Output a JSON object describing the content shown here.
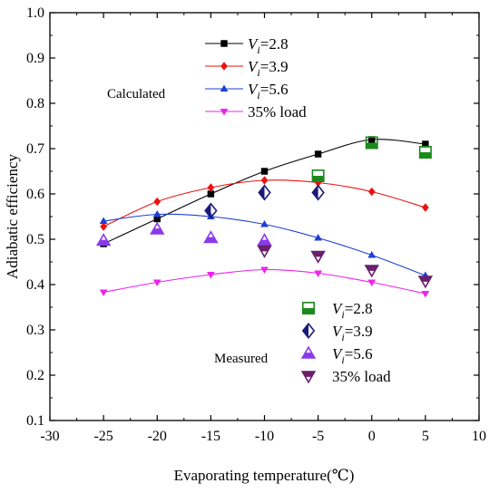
{
  "chart_data": {
    "type": "line",
    "xlabel": "Evaporating temperature(℃)",
    "ylabel": "Adiabatic efficiency",
    "xlim": [
      -30,
      10
    ],
    "ylim": [
      0.1,
      1.0
    ],
    "xticks": [
      "-30",
      "-25",
      "-20",
      "-15",
      "-10",
      "-5",
      "0",
      "5",
      "10"
    ],
    "yticks": [
      "0.1",
      "0.2",
      "0.3",
      "0.4",
      "0.5",
      "0.6",
      "0.7",
      "0.8",
      "0.9",
      "1.0"
    ],
    "grid": false,
    "annotations": {
      "calculated": "Calculated",
      "measured": "Measured"
    },
    "calculated_series": [
      {
        "name_main": "V",
        "name_sub": "i",
        "name_rest": "=2.8",
        "color": "#000000",
        "marker": "square",
        "x": [
          -25,
          -20,
          -15,
          -10,
          -5,
          0,
          5
        ],
        "y": [
          0.49,
          0.545,
          0.6,
          0.65,
          0.688,
          0.72,
          0.71
        ]
      },
      {
        "name_main": "V",
        "name_sub": "i",
        "name_rest": "=3.9",
        "color": "#ee1111",
        "marker": "diamond",
        "x": [
          -25,
          -20,
          -15,
          -10,
          -5,
          0,
          5
        ],
        "y": [
          0.528,
          0.583,
          0.614,
          0.63,
          0.625,
          0.605,
          0.57
        ]
      },
      {
        "name_main": "V",
        "name_sub": "i",
        "name_rest": "=5.6",
        "color": "#1f3fd6",
        "marker": "triangle-up",
        "x": [
          -25,
          -20,
          -15,
          -10,
          -5,
          0,
          5
        ],
        "y": [
          0.54,
          0.555,
          0.55,
          0.533,
          0.503,
          0.465,
          0.42
        ]
      },
      {
        "name_main": "35% load",
        "name_sub": "",
        "name_rest": "",
        "color": "#ee22ee",
        "marker": "triangle-down",
        "x": [
          -25,
          -20,
          -15,
          -10,
          -5,
          0,
          5
        ],
        "y": [
          0.383,
          0.405,
          0.422,
          0.433,
          0.425,
          0.405,
          0.38
        ]
      }
    ],
    "measured_series": [
      {
        "name_main": "V",
        "name_sub": "i",
        "name_rest": "=2.8",
        "color": "#1b8a1b",
        "marker": "square-half",
        "x": [
          -5,
          0,
          5
        ],
        "y": [
          0.64,
          0.713,
          0.692
        ]
      },
      {
        "name_main": "V",
        "name_sub": "i",
        "name_rest": "=3.9",
        "color": "#1a1a7a",
        "marker": "diamond-half",
        "x": [
          -15,
          -10,
          -5
        ],
        "y": [
          0.563,
          0.603,
          0.603
        ]
      },
      {
        "name_main": "V",
        "name_sub": "i",
        "name_rest": "=5.6",
        "color": "#8a3ae8",
        "marker": "triangle-up-half",
        "x": [
          -25,
          -20,
          -15,
          -10
        ],
        "y": [
          0.497,
          0.522,
          0.503,
          0.497
        ]
      },
      {
        "name_main": "35% load",
        "name_sub": "",
        "name_rest": "",
        "color": "#6a1f6a",
        "marker": "triangle-down-half",
        "x": [
          -10,
          -5,
          0,
          5
        ],
        "y": [
          0.475,
          0.463,
          0.432,
          0.408
        ]
      }
    ]
  }
}
